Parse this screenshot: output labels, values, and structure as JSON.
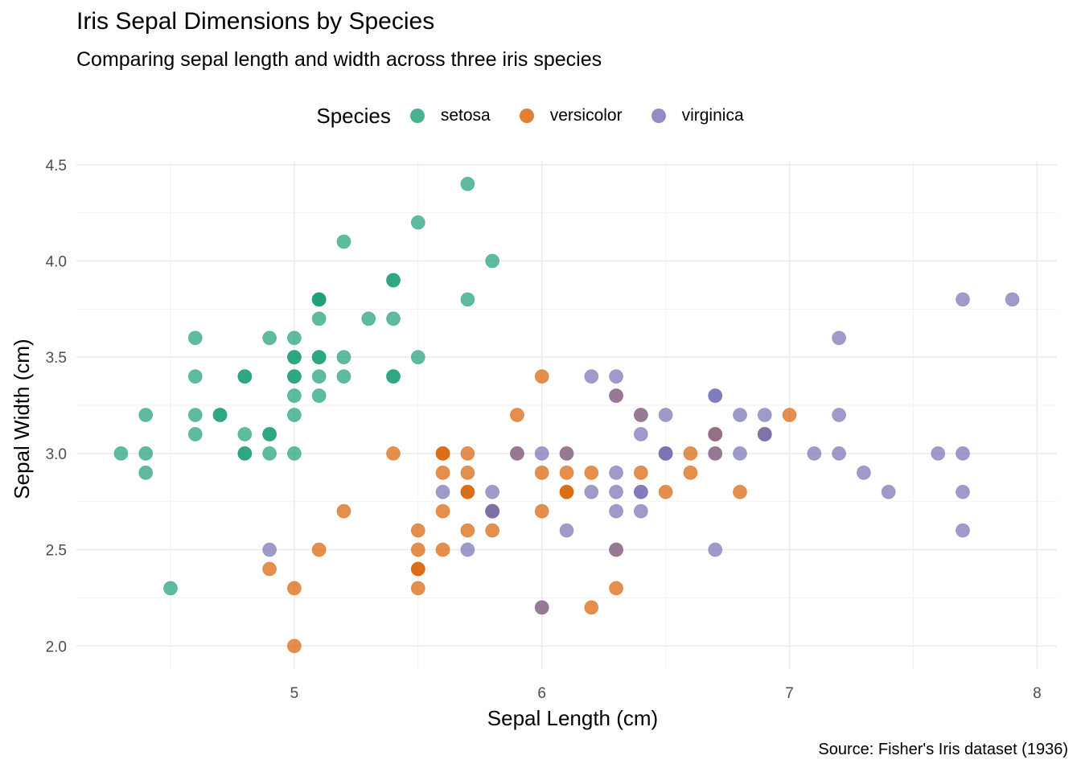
{
  "title": "Iris Sepal Dimensions by Species",
  "subtitle": "Comparing sepal length and width across three iris species",
  "caption": "Source: Fisher's Iris dataset (1936)",
  "legend": {
    "title": "Species",
    "position": "top"
  },
  "chart_data": {
    "type": "scatter",
    "xlabel": "Sepal Length (cm)",
    "ylabel": "Sepal Width (cm)",
    "xlim": [
      4.12,
      8.08
    ],
    "ylim": [
      1.88,
      4.52
    ],
    "x_ticks": [
      "5",
      "6",
      "7",
      "8"
    ],
    "x_tick_values": [
      5,
      6,
      7,
      8
    ],
    "y_ticks": [
      "2.0",
      "2.5",
      "3.0",
      "3.5",
      "4.0",
      "4.5"
    ],
    "y_tick_values": [
      2.0,
      2.5,
      3.0,
      3.5,
      4.0,
      4.5
    ],
    "grid": true,
    "series": [
      {
        "name": "setosa",
        "color": "#1B9E77",
        "x": [
          5.1,
          4.9,
          4.7,
          4.6,
          5.0,
          5.4,
          4.6,
          5.0,
          4.4,
          4.9,
          5.4,
          4.8,
          4.8,
          4.3,
          5.8,
          5.7,
          5.4,
          5.1,
          5.7,
          5.1,
          5.4,
          5.1,
          4.6,
          5.1,
          4.8,
          5.0,
          5.0,
          5.2,
          5.2,
          4.7,
          4.8,
          5.4,
          5.2,
          5.5,
          4.9,
          5.0,
          5.5,
          4.9,
          4.4,
          5.1,
          5.0,
          4.5,
          4.4,
          5.0,
          5.1,
          4.8,
          5.1,
          4.6,
          5.3,
          5.0
        ],
        "y": [
          3.5,
          3.0,
          3.2,
          3.1,
          3.6,
          3.9,
          3.4,
          3.4,
          2.9,
          3.1,
          3.7,
          3.4,
          3.0,
          3.0,
          4.0,
          4.4,
          3.9,
          3.5,
          3.8,
          3.8,
          3.4,
          3.7,
          3.6,
          3.3,
          3.4,
          3.0,
          3.4,
          3.5,
          3.4,
          3.2,
          3.1,
          3.4,
          4.1,
          4.2,
          3.1,
          3.2,
          3.5,
          3.6,
          3.0,
          3.4,
          3.5,
          2.3,
          3.2,
          3.5,
          3.8,
          3.0,
          3.8,
          3.2,
          3.7,
          3.3
        ]
      },
      {
        "name": "versicolor",
        "color": "#D95F02",
        "x": [
          7.0,
          6.4,
          6.9,
          5.5,
          6.5,
          5.7,
          6.3,
          4.9,
          6.6,
          5.2,
          5.0,
          5.9,
          6.0,
          6.1,
          5.6,
          6.7,
          5.6,
          5.8,
          6.2,
          5.6,
          5.9,
          6.1,
          6.3,
          6.1,
          6.4,
          6.6,
          6.8,
          6.7,
          6.0,
          5.7,
          5.5,
          5.5,
          5.8,
          6.0,
          5.4,
          6.0,
          6.7,
          6.3,
          5.6,
          5.5,
          5.5,
          6.1,
          5.8,
          5.0,
          5.6,
          5.7,
          5.7,
          6.2,
          5.1,
          5.7
        ],
        "y": [
          3.2,
          3.2,
          3.1,
          2.3,
          2.8,
          2.8,
          3.3,
          2.4,
          2.9,
          2.7,
          2.0,
          3.0,
          2.2,
          2.9,
          2.9,
          3.1,
          3.0,
          2.7,
          2.2,
          2.5,
          3.2,
          2.8,
          2.5,
          2.8,
          2.9,
          3.0,
          2.8,
          3.0,
          2.9,
          2.6,
          2.4,
          2.4,
          2.7,
          2.7,
          3.0,
          3.4,
          3.1,
          2.3,
          3.0,
          2.5,
          2.6,
          3.0,
          2.6,
          2.3,
          2.7,
          3.0,
          2.9,
          2.9,
          2.5,
          2.8
        ]
      },
      {
        "name": "virginica",
        "color": "#7570B3",
        "x": [
          6.3,
          5.8,
          7.1,
          6.3,
          6.5,
          7.6,
          4.9,
          7.3,
          6.7,
          7.2,
          6.5,
          6.4,
          6.8,
          5.7,
          5.8,
          6.4,
          6.5,
          7.7,
          7.7,
          6.0,
          6.9,
          5.6,
          7.7,
          6.3,
          6.7,
          7.2,
          6.2,
          6.1,
          6.4,
          7.2,
          7.4,
          7.9,
          6.4,
          6.3,
          6.1,
          7.7,
          6.3,
          6.4,
          6.0,
          6.9,
          6.7,
          6.9,
          5.8,
          6.8,
          6.7,
          6.7,
          6.3,
          6.5,
          6.2,
          5.9
        ],
        "y": [
          3.3,
          2.7,
          3.0,
          2.9,
          3.0,
          3.0,
          2.5,
          2.9,
          2.5,
          3.6,
          3.2,
          2.7,
          3.0,
          2.5,
          2.8,
          3.2,
          3.0,
          3.8,
          2.6,
          2.2,
          3.2,
          2.8,
          2.8,
          2.7,
          3.3,
          3.2,
          2.8,
          3.0,
          2.8,
          3.0,
          2.8,
          3.8,
          2.8,
          2.8,
          2.6,
          3.0,
          3.4,
          3.1,
          3.0,
          3.1,
          3.1,
          3.1,
          2.7,
          3.2,
          3.3,
          3.0,
          2.5,
          3.0,
          3.4,
          3.0
        ]
      }
    ]
  }
}
